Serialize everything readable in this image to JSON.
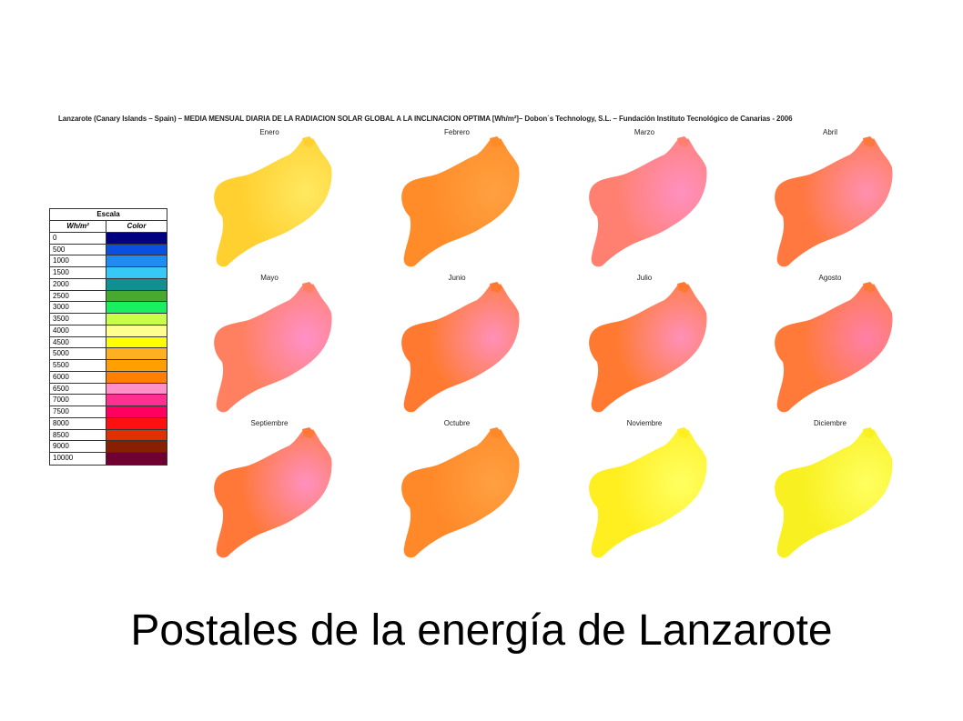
{
  "header": "Lanzarote (Canary Islands – Spain) – MEDIA MENSUAL DIARIA DE LA RADIACION SOLAR GLOBAL A LA INCLINACION OPTIMA [Wh/m²]– Dobon´s Technology, S.L. – Fundación Instituto Tecnológico de Canarias - 2006",
  "legend": {
    "title": "Escala",
    "col_value": "Wh/m²",
    "col_color": "Color",
    "rows": [
      {
        "value": "0",
        "color": "#000080"
      },
      {
        "value": "500",
        "color": "#0a4fe0"
      },
      {
        "value": "1000",
        "color": "#1e8cf0"
      },
      {
        "value": "1500",
        "color": "#38c8f8"
      },
      {
        "value": "2000",
        "color": "#109090"
      },
      {
        "value": "2500",
        "color": "#48a830"
      },
      {
        "value": "3000",
        "color": "#18f060"
      },
      {
        "value": "3500",
        "color": "#c8ff48"
      },
      {
        "value": "4000",
        "color": "#ffff90"
      },
      {
        "value": "4500",
        "color": "#ffff00"
      },
      {
        "value": "5000",
        "color": "#ffb020"
      },
      {
        "value": "5500",
        "color": "#ffa000"
      },
      {
        "value": "6000",
        "color": "#ff8000"
      },
      {
        "value": "6500",
        "color": "#ff90c8"
      },
      {
        "value": "7000",
        "color": "#ff3090"
      },
      {
        "value": "7500",
        "color": "#ff0060"
      },
      {
        "value": "8000",
        "color": "#ff1010"
      },
      {
        "value": "8500",
        "color": "#e03000"
      },
      {
        "value": "9000",
        "color": "#882000"
      },
      {
        "value": "10000",
        "color": "#700030"
      }
    ]
  },
  "months": [
    {
      "name": "Enero",
      "fill": "#ffd030",
      "hot": "#ffe860"
    },
    {
      "name": "Febrero",
      "fill": "#ff8c28",
      "hot": "#ffa040"
    },
    {
      "name": "Marzo",
      "fill": "#ff8070",
      "hot": "#ff90c0"
    },
    {
      "name": "Abril",
      "fill": "#ff7840",
      "hot": "#ff90b0"
    },
    {
      "name": "Mayo",
      "fill": "#ff8060",
      "hot": "#ff90c8"
    },
    {
      "name": "Junio",
      "fill": "#ff7a30",
      "hot": "#ff90b8"
    },
    {
      "name": "Julio",
      "fill": "#ff7a30",
      "hot": "#ff90b8"
    },
    {
      "name": "Agosto",
      "fill": "#ff7a38",
      "hot": "#ff80a8"
    },
    {
      "name": "Septiembre",
      "fill": "#ff7838",
      "hot": "#ff90c0"
    },
    {
      "name": "Octubre",
      "fill": "#ff8828",
      "hot": "#ffa040"
    },
    {
      "name": "Noviembre",
      "fill": "#ffee20",
      "hot": "#ffff60"
    },
    {
      "name": "Diciembre",
      "fill": "#f8f020",
      "hot": "#ffff60"
    }
  ],
  "caption": "Postales de la energía de Lanzarote"
}
